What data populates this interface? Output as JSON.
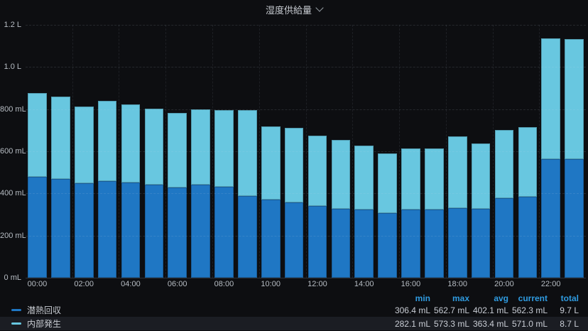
{
  "panel": {
    "title": "湿度供給量",
    "title_icon": "chevron-down"
  },
  "colors": {
    "background": "#0d0e11",
    "series1": "#1f77c4",
    "series2": "#68c7e0",
    "header_link": "#2f9be0",
    "text": "#c7cbd1",
    "row_highlight": "#1b1d23"
  },
  "chart_data": {
    "type": "bar",
    "stacked": true,
    "title": "湿度供給量",
    "xlabel": "",
    "ylabel": "",
    "unit": "mL",
    "ylim": [
      0,
      1200
    ],
    "grid": true,
    "x": [
      "00:00",
      "01:00",
      "02:00",
      "03:00",
      "04:00",
      "05:00",
      "06:00",
      "07:00",
      "08:00",
      "09:00",
      "10:00",
      "11:00",
      "12:00",
      "13:00",
      "14:00",
      "15:00",
      "16:00",
      "17:00",
      "18:00",
      "19:00",
      "20:00",
      "21:00",
      "22:00",
      "23:00"
    ],
    "x_tick_labels": [
      "00:00",
      "02:00",
      "04:00",
      "06:00",
      "08:00",
      "10:00",
      "12:00",
      "14:00",
      "16:00",
      "18:00",
      "20:00",
      "22:00"
    ],
    "y_ticks": [
      "0 mL",
      "200 mL",
      "400 mL",
      "600 mL",
      "800 mL",
      "1.0 L",
      "1.2 L"
    ],
    "series": [
      {
        "name": "潜熱回収",
        "color": "#1f77c4",
        "stack_position": "bottom",
        "values": [
          478,
          468,
          450,
          460,
          452,
          443,
          427,
          440,
          432,
          388,
          370,
          358,
          340,
          326,
          324,
          306.4,
          322,
          324,
          331,
          326,
          376,
          385,
          562.7,
          562.3
        ]
      },
      {
        "name": "内部発生",
        "color": "#68c7e0",
        "stack_position": "top",
        "values": [
          398,
          392,
          364,
          378,
          370,
          358,
          354,
          359,
          363,
          407,
          348,
          352,
          334,
          329,
          302,
          282.1,
          292,
          290,
          339,
          310,
          326,
          329,
          573.3,
          571.0
        ]
      }
    ],
    "legend_position": "bottom"
  },
  "legend": {
    "headers": [
      "min",
      "max",
      "avg",
      "current",
      "total"
    ],
    "rows": [
      {
        "label": "潜熱回収",
        "color": "#1f77c4",
        "highlighted": false,
        "min": "306.4 mL",
        "max": "562.7 mL",
        "avg": "402.1 mL",
        "current": "562.3 mL",
        "total": "9.7 L"
      },
      {
        "label": "内部発生",
        "color": "#68c7e0",
        "highlighted": true,
        "min": "282.1 mL",
        "max": "573.3 mL",
        "avg": "363.4 mL",
        "current": "571.0 mL",
        "total": "8.7 L"
      }
    ]
  }
}
